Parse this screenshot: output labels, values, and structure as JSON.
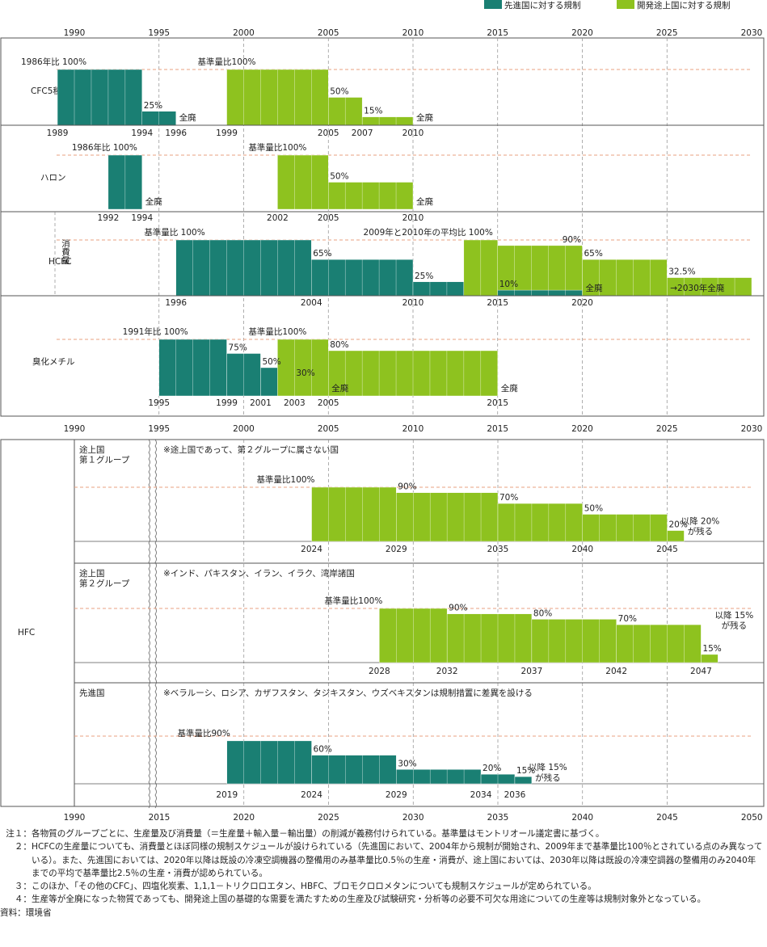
{
  "colors": {
    "developed": "#1a7f73",
    "developing": "#8ec21f",
    "baseline_dash": "#e8a080",
    "grid": "#8c8c8c",
    "box": "#555555"
  },
  "legend": [
    {
      "label": "先進国に対する規制",
      "color": "#1a7f73"
    },
    {
      "label": "開発途上国に対する規制",
      "color": "#8ec21f"
    }
  ],
  "chart_data": [
    {
      "type": "bar",
      "panel": "top",
      "xlim": [
        1990,
        2030
      ],
      "axis_ticks": [
        "1990",
        "1995",
        "2000",
        "2005",
        "2010",
        "2015",
        "2020",
        "2025",
        "2030"
      ],
      "rows": [
        {
          "label": "CFC5種",
          "steps": [
            {
              "group": "developed",
              "from": 1989,
              "to": 1994,
              "level": 100
            },
            {
              "group": "developed",
              "from": 1994,
              "to": 1996,
              "level": 25
            },
            {
              "group": "developing",
              "from": 1999,
              "to": 2005,
              "level": 100
            },
            {
              "group": "developing",
              "from": 2005,
              "to": 2007,
              "level": 50
            },
            {
              "group": "developing",
              "from": 2007,
              "to": 2010,
              "level": 15
            }
          ],
          "labels": [
            {
              "text": "1986年比 100%",
              "x": 1989,
              "level": 100,
              "pos": "left"
            },
            {
              "text": "25%",
              "x": 1994,
              "level": 25,
              "pos": "above"
            },
            {
              "text": "全廃",
              "x": 1996,
              "level": 0,
              "pos": "right"
            },
            {
              "text": "基準量比100%",
              "x": 1999,
              "level": 100,
              "pos": "left"
            },
            {
              "text": "50%",
              "x": 2005,
              "level": 50,
              "pos": "above"
            },
            {
              "text": "15%",
              "x": 2007,
              "level": 15,
              "pos": "above"
            },
            {
              "text": "全廃",
              "x": 2010,
              "level": 0,
              "pos": "right"
            }
          ],
          "years": [
            {
              "text": "1989",
              "x": 1989
            },
            {
              "text": "1994",
              "x": 1994
            },
            {
              "text": "1996",
              "x": 1996
            },
            {
              "text": "1999",
              "x": 1999
            },
            {
              "text": "2005",
              "x": 2005
            },
            {
              "text": "2007",
              "x": 2007
            },
            {
              "text": "2010",
              "x": 2010
            }
          ]
        },
        {
          "label": "ハロン",
          "steps": [
            {
              "group": "developed",
              "from": 1992,
              "to": 1994,
              "level": 100
            },
            {
              "group": "developing",
              "from": 2002,
              "to": 2005,
              "level": 100
            },
            {
              "group": "developing",
              "from": 2005,
              "to": 2010,
              "level": 50
            }
          ],
          "labels": [
            {
              "text": "1986年比 100%",
              "x": 1992,
              "level": 100,
              "pos": "left"
            },
            {
              "text": "全廃",
              "x": 1994,
              "level": 0,
              "pos": "right"
            },
            {
              "text": "基準量比100%",
              "x": 2002,
              "level": 100,
              "pos": "left"
            },
            {
              "text": "50%",
              "x": 2005,
              "level": 50,
              "pos": "above"
            },
            {
              "text": "全廃",
              "x": 2010,
              "level": 0,
              "pos": "right"
            }
          ],
          "years": [
            {
              "text": "1992",
              "x": 1992
            },
            {
              "text": "1994",
              "x": 1994
            },
            {
              "text": "2002",
              "x": 2002
            },
            {
              "text": "2005",
              "x": 2005
            },
            {
              "text": "2010",
              "x": 2010
            }
          ]
        },
        {
          "label": "HCFC",
          "sublabel": "消費量",
          "steps": [
            {
              "group": "developed",
              "from": 1996,
              "to": 2004,
              "level": 100
            },
            {
              "group": "developed",
              "from": 2004,
              "to": 2010,
              "level": 65
            },
            {
              "group": "developed",
              "from": 2010,
              "to": 2015,
              "level": 25
            },
            {
              "group": "developing",
              "from": 2013,
              "to": 2015,
              "level": 100
            },
            {
              "group": "developing",
              "from": 2015,
              "to": 2020,
              "level": 90
            },
            {
              "group": "developed",
              "from": 2015,
              "to": 2020,
              "level": 10
            },
            {
              "group": "developing",
              "from": 2020,
              "to": 2025,
              "level": 65
            },
            {
              "group": "developing",
              "from": 2025,
              "to": 2030,
              "level": 32.5
            }
          ],
          "labels": [
            {
              "text": "基準量比 100%",
              "x": 1996,
              "level": 100,
              "pos": "left"
            },
            {
              "text": "65%",
              "x": 2004,
              "level": 65,
              "pos": "above"
            },
            {
              "text": "25%",
              "x": 2010,
              "level": 25,
              "pos": "above"
            },
            {
              "text": "2009年と2010年の平均比 100%",
              "x": 2013,
              "level": 100,
              "pos": "left"
            },
            {
              "text": "90%",
              "x": 2015,
              "level": 90,
              "pos": "above-end"
            },
            {
              "text": "10%",
              "x": 2015,
              "level": 10,
              "pos": "above"
            },
            {
              "text": "全廃",
              "x": 2020,
              "level": 0,
              "pos": "right"
            },
            {
              "text": "65%",
              "x": 2020,
              "level": 65,
              "pos": "above"
            },
            {
              "text": "→2030年全廃",
              "x": 2025,
              "level": 100,
              "pos": "right"
            },
            {
              "text": "32.5%",
              "x": 2025,
              "level": 32.5,
              "pos": "above"
            }
          ],
          "years": [
            {
              "text": "1996",
              "x": 1996
            },
            {
              "text": "2004",
              "x": 2004
            },
            {
              "text": "2010",
              "x": 2010
            },
            {
              "text": "2015",
              "x": 2015
            },
            {
              "text": "2020",
              "x": 2020
            }
          ]
        },
        {
          "label": "臭化メチル",
          "steps": [
            {
              "group": "developed",
              "from": 1995,
              "to": 1999,
              "level": 100
            },
            {
              "group": "developed",
              "from": 1999,
              "to": 2001,
              "level": 75
            },
            {
              "group": "developed",
              "from": 2001,
              "to": 2003,
              "level": 50
            },
            {
              "group": "developed",
              "from": 2003,
              "to": 2005,
              "level": 30
            },
            {
              "group": "developing",
              "from": 2002,
              "to": 2005,
              "level": 100
            },
            {
              "group": "developing",
              "from": 2005,
              "to": 2015,
              "level": 80
            }
          ],
          "labels": [
            {
              "text": "1991年比 100%",
              "x": 1995,
              "level": 100,
              "pos": "left"
            },
            {
              "text": "基準量比100%",
              "x": 2002,
              "level": 100,
              "pos": "left"
            },
            {
              "text": "75%",
              "x": 1999,
              "level": 75,
              "pos": "above"
            },
            {
              "text": "50%",
              "x": 2001,
              "level": 50,
              "pos": "above"
            },
            {
              "text": "30%",
              "x": 2003,
              "level": 30,
              "pos": "above"
            },
            {
              "text": "80%",
              "x": 2005,
              "level": 80,
              "pos": "above"
            },
            {
              "text": "全廃",
              "x": 2005,
              "level": 0,
              "pos": "right"
            },
            {
              "text": "全廃",
              "x": 2015,
              "level": 0,
              "pos": "right"
            }
          ],
          "years": [
            {
              "text": "1995",
              "x": 1995
            },
            {
              "text": "1999",
              "x": 1999
            },
            {
              "text": "2001",
              "x": 2001
            },
            {
              "text": "2003",
              "x": 2003
            },
            {
              "text": "2005",
              "x": 2005
            },
            {
              "text": "2015",
              "x": 2015
            }
          ]
        }
      ]
    },
    {
      "type": "bar",
      "panel": "bottom",
      "label": "HFC",
      "axis_break": [
        1990,
        2015
      ],
      "xlim": [
        2015,
        2050
      ],
      "axis_ticks": [
        "1990",
        "2015",
        "2020",
        "2025",
        "2030",
        "2035",
        "2040",
        "2045",
        "2050"
      ],
      "rows": [
        {
          "label": "途上国\n第１グループ",
          "note": "※途上国であって、第２グループに属さない国",
          "steps": [
            {
              "group": "developing",
              "from": 2024,
              "to": 2029,
              "level": 100
            },
            {
              "group": "developing",
              "from": 2029,
              "to": 2035,
              "level": 90
            },
            {
              "group": "developing",
              "from": 2035,
              "to": 2040,
              "level": 70
            },
            {
              "group": "developing",
              "from": 2040,
              "to": 2045,
              "level": 50
            },
            {
              "group": "developing",
              "from": 2045,
              "to": 2046,
              "level": 20
            }
          ],
          "labels": [
            {
              "text": "基準量比100%",
              "x": 2024,
              "level": 100,
              "pos": "left"
            },
            {
              "text": "90%",
              "x": 2029,
              "level": 90,
              "pos": "above"
            },
            {
              "text": "70%",
              "x": 2035,
              "level": 70,
              "pos": "above"
            },
            {
              "text": "50%",
              "x": 2040,
              "level": 50,
              "pos": "above"
            },
            {
              "text": "20%",
              "x": 2045,
              "level": 20,
              "pos": "above"
            },
            {
              "text": "以降 20%\nが残る",
              "x": 2046,
              "level": 20,
              "pos": "side"
            }
          ],
          "years": [
            {
              "text": "2024",
              "x": 2024
            },
            {
              "text": "2029",
              "x": 2029
            },
            {
              "text": "2035",
              "x": 2035
            },
            {
              "text": "2040",
              "x": 2040
            },
            {
              "text": "2045",
              "x": 2045
            }
          ]
        },
        {
          "label": "途上国\n第２グループ",
          "note": "※インド、パキスタン、イラン、イラク、湾岸諸国",
          "steps": [
            {
              "group": "developing",
              "from": 2028,
              "to": 2032,
              "level": 100
            },
            {
              "group": "developing",
              "from": 2032,
              "to": 2037,
              "level": 90
            },
            {
              "group": "developing",
              "from": 2037,
              "to": 2042,
              "level": 80
            },
            {
              "group": "developing",
              "from": 2042,
              "to": 2047,
              "level": 70
            },
            {
              "group": "developing",
              "from": 2047,
              "to": 2048,
              "level": 15
            }
          ],
          "labels": [
            {
              "text": "基準量比100%",
              "x": 2028,
              "level": 100,
              "pos": "left"
            },
            {
              "text": "90%",
              "x": 2032,
              "level": 90,
              "pos": "above"
            },
            {
              "text": "80%",
              "x": 2037,
              "level": 80,
              "pos": "above"
            },
            {
              "text": "70%",
              "x": 2042,
              "level": 70,
              "pos": "above"
            },
            {
              "text": "15%",
              "x": 2047,
              "level": 15,
              "pos": "above"
            },
            {
              "text": "以降 15%\nが残る",
              "x": 2048,
              "level": 70,
              "pos": "side"
            }
          ],
          "years": [
            {
              "text": "2028",
              "x": 2028
            },
            {
              "text": "2032",
              "x": 2032
            },
            {
              "text": "2037",
              "x": 2037
            },
            {
              "text": "2042",
              "x": 2042
            },
            {
              "text": "2047",
              "x": 2047
            }
          ]
        },
        {
          "label": "先進国",
          "note": "※ベラルーシ、ロシア、カザフスタン、タジキスタン、ウズベキスタンは規制措置に差異を設ける",
          "steps": [
            {
              "group": "developed",
              "from": 2019,
              "to": 2024,
              "level": 90
            },
            {
              "group": "developed",
              "from": 2024,
              "to": 2029,
              "level": 60
            },
            {
              "group": "developed",
              "from": 2029,
              "to": 2034,
              "level": 30
            },
            {
              "group": "developed",
              "from": 2034,
              "to": 2036,
              "level": 20
            },
            {
              "group": "developed",
              "from": 2036,
              "to": 2037,
              "level": 15
            }
          ],
          "labels": [
            {
              "text": "基準量比90%",
              "x": 2019,
              "level": 90,
              "pos": "left"
            },
            {
              "text": "60%",
              "x": 2024,
              "level": 60,
              "pos": "above"
            },
            {
              "text": "30%",
              "x": 2029,
              "level": 30,
              "pos": "above"
            },
            {
              "text": "20%",
              "x": 2034,
              "level": 20,
              "pos": "above"
            },
            {
              "text": "15%",
              "x": 2036,
              "level": 15,
              "pos": "above"
            },
            {
              "text": "以降 15%\nが残る",
              "x": 2037,
              "level": 15,
              "pos": "side"
            }
          ],
          "years": [
            {
              "text": "2019",
              "x": 2019
            },
            {
              "text": "2024",
              "x": 2024
            },
            {
              "text": "2029",
              "x": 2029
            },
            {
              "text": "2034",
              "x": 2034
            },
            {
              "text": "2036",
              "x": 2036
            }
          ]
        }
      ]
    }
  ],
  "notes": [
    {
      "head": "注１：",
      "text": "各物質のグループごとに、生産量及び消費量（＝生産量＋輸入量－輸出量）の削減が義務付けられている。基準量はモントリオール議定書に基づく。"
    },
    {
      "head": "２：",
      "text": "HCFCの生産量についても、消費量とほぼ同様の規制スケジュールが設けられている（先進国において、2004年から規制が開始され、2009年まで基準量比100％とされている点のみ異なっている）。また、先進国においては、2020年以降は既設の冷凍空調機器の整備用のみ基準量比0.5％の生産・消費が、途上国においては、2030年以降は既設の冷凍空調器の整備用のみ2040年までの平均で基準量比2.5％の生産・消費が認められている。"
    },
    {
      "head": "３：",
      "text": "このほか、「その他のCFC」、四塩化炭素、1,1,1－トリクロロエタン、HBFC、ブロモクロロメタンについても規制スケジュールが定められている。"
    },
    {
      "head": "４：",
      "text": "生産等が全廃になった物質であっても、開発途上国の基礎的な需要を満たすための生産及び試験研究・分析等の必要不可欠な用途についての生産等は規制対象外となっている。"
    }
  ],
  "source": "資料：環境省"
}
